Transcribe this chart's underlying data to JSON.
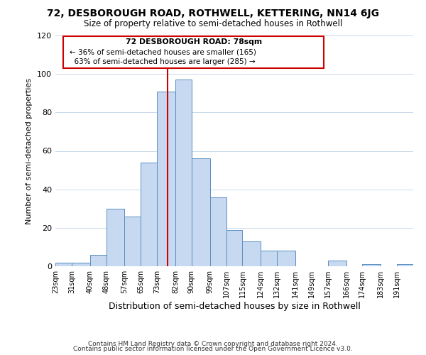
{
  "title": "72, DESBOROUGH ROAD, ROTHWELL, KETTERING, NN14 6JG",
  "subtitle": "Size of property relative to semi-detached houses in Rothwell",
  "xlabel": "Distribution of semi-detached houses by size in Rothwell",
  "ylabel": "Number of semi-detached properties",
  "footnote1": "Contains HM Land Registry data © Crown copyright and database right 2024.",
  "footnote2": "Contains public sector information licensed under the Open Government Licence v3.0.",
  "bin_labels": [
    "23sqm",
    "31sqm",
    "40sqm",
    "48sqm",
    "57sqm",
    "65sqm",
    "73sqm",
    "82sqm",
    "90sqm",
    "99sqm",
    "107sqm",
    "115sqm",
    "124sqm",
    "132sqm",
    "141sqm",
    "149sqm",
    "157sqm",
    "166sqm",
    "174sqm",
    "183sqm",
    "191sqm"
  ],
  "bar_heights": [
    2,
    2,
    6,
    30,
    26,
    54,
    91,
    97,
    56,
    36,
    19,
    13,
    8,
    8,
    0,
    0,
    3,
    0,
    1,
    0,
    1
  ],
  "bar_color": "#c6d9f0",
  "bar_edge_color": "#5a8fc2",
  "property_label": "72 DESBOROUGH ROAD: 78sqm",
  "line_color": "#cc0000",
  "annotation_text1": "← 36% of semi-detached houses are smaller (165)",
  "annotation_text2": "  63% of semi-detached houses are larger (285) →",
  "annotation_box_edge": "#cc0000",
  "ylim": [
    0,
    120
  ],
  "vline_x": 78,
  "bin_edges": [
    23,
    31,
    40,
    48,
    57,
    65,
    73,
    82,
    90,
    99,
    107,
    115,
    124,
    132,
    141,
    149,
    157,
    166,
    174,
    183,
    191,
    199
  ]
}
